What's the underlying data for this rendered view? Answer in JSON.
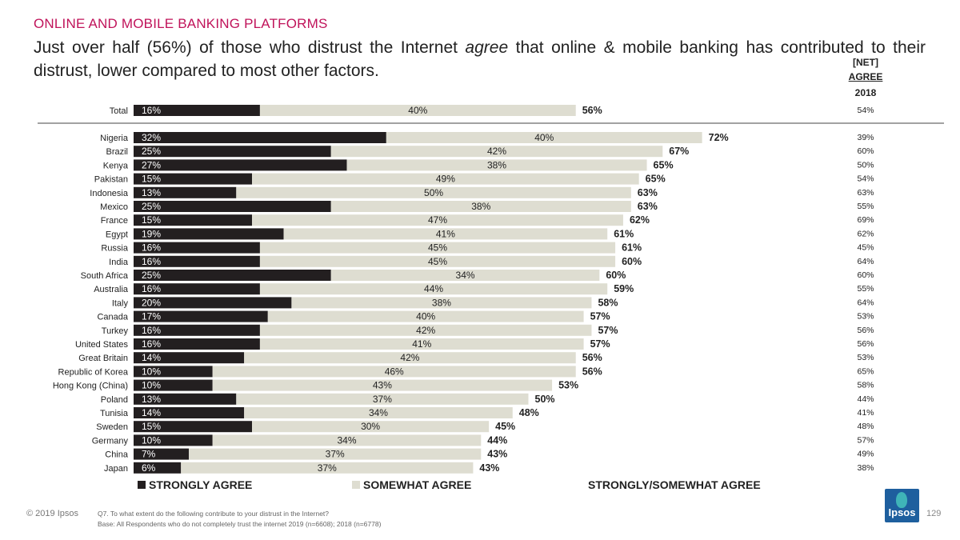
{
  "header": {
    "section": "ONLINE AND MOBILE BANKING PLATFORMS",
    "headline_pre": "Just over half (56%) of those who distrust the Internet ",
    "headline_em": "agree",
    "headline_post": " that online & mobile banking has contributed to their distrust, lower compared to most other factors."
  },
  "net_header": {
    "line1": "[NET]",
    "line2": "AGREE",
    "line3": "2018"
  },
  "legend": {
    "strongly": "STRONGLY AGREE",
    "somewhat": "SOMEWHAT AGREE",
    "net": "STRONGLY/SOMEWHAT AGREE"
  },
  "colors": {
    "strongly": "#231f20",
    "somewhat": "#deddd1",
    "accent": "#c0135a"
  },
  "footer": {
    "copyright": "© 2019 Ipsos",
    "question": "Q7.  To what extent do the following contribute to your distrust in the Internet?",
    "base": "Base: All Respondents who do not completely trust the internet 2019 (n=6608); 2018 (n=6778)",
    "page": "129",
    "logo": "Ipsos"
  },
  "chart_data": {
    "type": "bar",
    "orientation": "horizontal",
    "stacked": true,
    "xlim": [
      0,
      100
    ],
    "series": [
      {
        "name": "STRONGLY AGREE",
        "color": "#231f20"
      },
      {
        "name": "SOMEWHAT AGREE",
        "color": "#deddd1"
      }
    ],
    "total": {
      "label": "Total",
      "strongly": "16%",
      "somewhat": "40%",
      "net": "56%",
      "net2018": "54%"
    },
    "categories": [
      "Nigeria",
      "Brazil",
      "Kenya",
      "Pakistan",
      "Indonesia",
      "Mexico",
      "France",
      "Egypt",
      "Russia",
      "India",
      "South Africa",
      "Australia",
      "Italy",
      "Canada",
      "Turkey",
      "United States",
      "Great Britain",
      "Republic of Korea",
      "Hong Kong (China)",
      "Poland",
      "Tunisia",
      "Sweden",
      "Germany",
      "China",
      "Japan"
    ],
    "strongly": [
      "32%",
      "25%",
      "27%",
      "15%",
      "13%",
      "25%",
      "15%",
      "19%",
      "16%",
      "16%",
      "25%",
      "16%",
      "20%",
      "17%",
      "16%",
      "16%",
      "14%",
      "10%",
      "10%",
      "13%",
      "14%",
      "15%",
      "10%",
      "7%",
      "6%"
    ],
    "somewhat": [
      "40%",
      "42%",
      "38%",
      "49%",
      "50%",
      "38%",
      "47%",
      "41%",
      "45%",
      "45%",
      "34%",
      "44%",
      "38%",
      "40%",
      "42%",
      "41%",
      "42%",
      "46%",
      "43%",
      "37%",
      "34%",
      "30%",
      "34%",
      "37%",
      "37%"
    ],
    "net": [
      "72%",
      "67%",
      "65%",
      "65%",
      "63%",
      "63%",
      "62%",
      "61%",
      "61%",
      "60%",
      "60%",
      "59%",
      "58%",
      "57%",
      "57%",
      "57%",
      "56%",
      "56%",
      "53%",
      "50%",
      "48%",
      "45%",
      "44%",
      "43%",
      "43%"
    ],
    "net2018": [
      "39%",
      "60%",
      "50%",
      "54%",
      "63%",
      "55%",
      "69%",
      "62%",
      "45%",
      "64%",
      "60%",
      "55%",
      "64%",
      "53%",
      "56%",
      "56%",
      "53%",
      "65%",
      "58%",
      "44%",
      "41%",
      "48%",
      "57%",
      "49%",
      "38%"
    ]
  }
}
